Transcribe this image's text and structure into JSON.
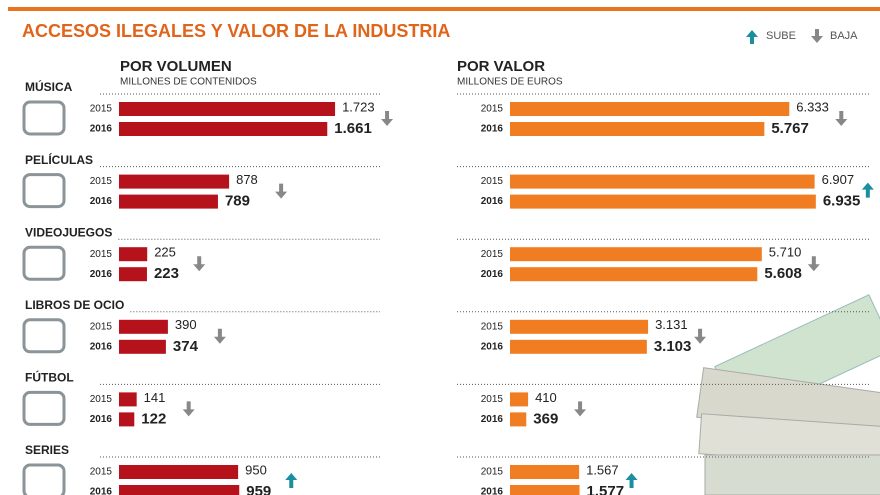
{
  "title": "ACCESOS ILEGALES Y VALOR DE LA INDUSTRIA",
  "legend": {
    "up": "SUBE",
    "down": "BAJA"
  },
  "chart_data": [
    {
      "type": "bar",
      "orientation": "horizontal",
      "title": "POR VOLUMEN",
      "subtitle": "MILLONES DE CONTENIDOS",
      "categories": [
        "MÚSICA",
        "PELÍCULAS",
        "VIDEOJUEGOS",
        "LIBROS DE OCIO",
        "FÚTBOL",
        "SERIES"
      ],
      "series": [
        {
          "name": "2015",
          "color": "#b5121b",
          "values": [
            1723,
            878,
            225,
            390,
            141,
            950
          ],
          "value_labels": [
            "1.723",
            "878",
            "225",
            "390",
            "141",
            "950"
          ]
        },
        {
          "name": "2016",
          "color": "#b5121b",
          "values": [
            1661,
            789,
            223,
            374,
            122,
            959
          ],
          "value_labels": [
            "1.661",
            "789",
            "223",
            "374",
            "122",
            "959"
          ]
        }
      ]
    },
    {
      "type": "bar",
      "orientation": "horizontal",
      "title": "POR VALOR",
      "subtitle": "MILLONES DE EUROS",
      "series": [
        {
          "name": "2015",
          "color": "#f07d22",
          "values": [
            6333,
            6907,
            5710,
            3131,
            410,
            1567
          ],
          "value_labels": [
            "6.333",
            "6.907",
            "5.710",
            "3.131",
            "410",
            "1.567"
          ]
        },
        {
          "name": "2016",
          "color": "#f07d22",
          "values": [
            5767,
            6935,
            5608,
            3103,
            369,
            1577
          ],
          "value_labels": [
            "5.767",
            "6.935",
            "5.608",
            "3.103",
            "369",
            "1.577"
          ]
        }
      ]
    }
  ]
}
